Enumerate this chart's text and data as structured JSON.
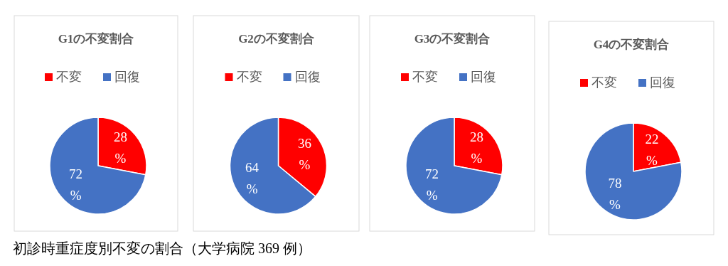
{
  "chart_data": [
    {
      "type": "pie",
      "title": "G1の不変割合",
      "categories": [
        "不変",
        "回復"
      ],
      "values": [
        28,
        72
      ],
      "colors": [
        "#ff0000",
        "#4472c4"
      ],
      "value_labels": [
        "28%",
        "72%"
      ],
      "legend": "top",
      "annotations": [
        "初診時重症度別不変の割合（大学病院 369 例）"
      ]
    },
    {
      "type": "pie",
      "title": "G2の不変割合",
      "categories": [
        "不変",
        "回復"
      ],
      "values": [
        36,
        64
      ],
      "colors": [
        "#ff0000",
        "#4472c4"
      ],
      "value_labels": [
        "36%",
        "64%"
      ],
      "legend": "top"
    },
    {
      "type": "pie",
      "title": "G3の不変割合",
      "categories": [
        "不変",
        "回復"
      ],
      "values": [
        28,
        72
      ],
      "colors": [
        "#ff0000",
        "#4472c4"
      ],
      "value_labels": [
        "28%",
        "72%"
      ],
      "legend": "top"
    },
    {
      "type": "pie",
      "title": "G4の不変割合",
      "categories": [
        "不変",
        "回復"
      ],
      "values": [
        22,
        78
      ],
      "colors": [
        "#ff0000",
        "#4472c4"
      ],
      "value_labels": [
        "22%",
        "78%"
      ],
      "legend": "top"
    }
  ]
}
